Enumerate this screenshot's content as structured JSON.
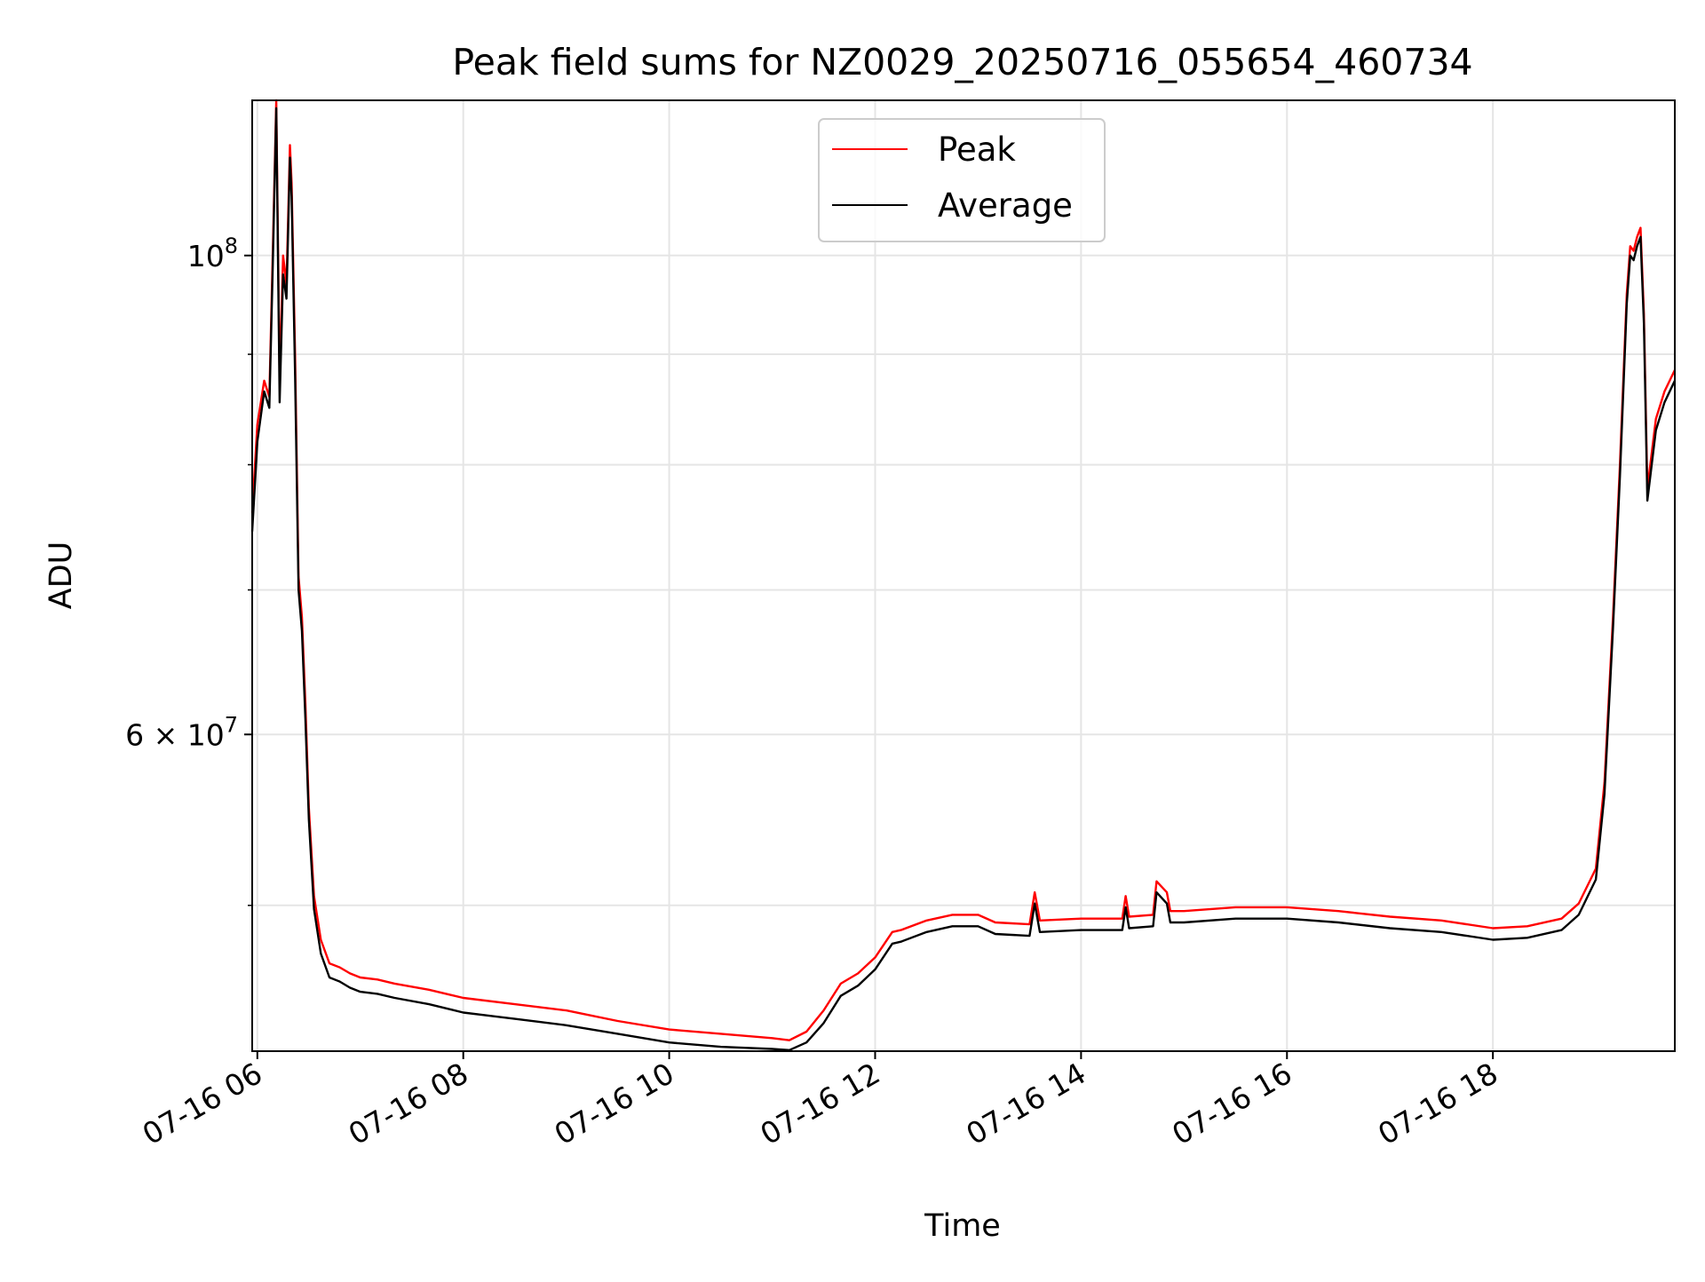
{
  "chart_data": {
    "type": "line",
    "title": "Peak field sums for NZ0029_20250716_055654_460734",
    "xlabel": "Time",
    "ylabel": "ADU",
    "y_scale": "log",
    "ylim": [
      42800000,
      118000000
    ],
    "xlim": [
      "2025-07-16 05:57",
      "2025-07-16 19:46"
    ],
    "grid": true,
    "legend": {
      "position": "upper center",
      "entries": [
        "Peak",
        "Average"
      ]
    },
    "x_ticks": [
      {
        "value": "2025-07-16 06:00",
        "label": "07-16 06"
      },
      {
        "value": "2025-07-16 08:00",
        "label": "07-16 08"
      },
      {
        "value": "2025-07-16 10:00",
        "label": "07-16 10"
      },
      {
        "value": "2025-07-16 12:00",
        "label": "07-16 12"
      },
      {
        "value": "2025-07-16 14:00",
        "label": "07-16 14"
      },
      {
        "value": "2025-07-16 16:00",
        "label": "07-16 16"
      },
      {
        "value": "2025-07-16 18:00",
        "label": "07-16 18"
      }
    ],
    "y_ticks": [
      {
        "value": 100000000,
        "label_base": "10",
        "label_exp": "8"
      },
      {
        "value": 60000000,
        "label_base": "6 × 10",
        "label_exp": "7"
      }
    ],
    "y_minor_ticks": [
      50000000,
      70000000,
      80000000,
      90000000
    ],
    "series": [
      {
        "name": "Peak",
        "color": "#ff0000",
        "x": [
          "2025-07-16 05:57",
          "2025-07-16 06:00",
          "2025-07-16 06:04",
          "2025-07-16 06:07",
          "2025-07-16 06:09",
          "2025-07-16 06:11",
          "2025-07-16 06:13",
          "2025-07-16 06:15",
          "2025-07-16 06:17",
          "2025-07-16 06:19",
          "2025-07-16 06:20",
          "2025-07-16 06:22",
          "2025-07-16 06:24",
          "2025-07-16 06:26",
          "2025-07-16 06:28",
          "2025-07-16 06:30",
          "2025-07-16 06:33",
          "2025-07-16 06:37",
          "2025-07-16 06:42",
          "2025-07-16 06:48",
          "2025-07-16 06:54",
          "2025-07-16 07:00",
          "2025-07-16 07:10",
          "2025-07-16 07:20",
          "2025-07-16 07:40",
          "2025-07-16 08:00",
          "2025-07-16 08:30",
          "2025-07-16 09:00",
          "2025-07-16 09:30",
          "2025-07-16 10:00",
          "2025-07-16 10:30",
          "2025-07-16 11:00",
          "2025-07-16 11:10",
          "2025-07-16 11:20",
          "2025-07-16 11:30",
          "2025-07-16 11:40",
          "2025-07-16 11:50",
          "2025-07-16 12:00",
          "2025-07-16 12:10",
          "2025-07-16 12:15",
          "2025-07-16 12:30",
          "2025-07-16 12:45",
          "2025-07-16 13:00",
          "2025-07-16 13:10",
          "2025-07-16 13:30",
          "2025-07-16 13:33",
          "2025-07-16 13:36",
          "2025-07-16 14:00",
          "2025-07-16 14:24",
          "2025-07-16 14:26",
          "2025-07-16 14:28",
          "2025-07-16 14:42",
          "2025-07-16 14:44",
          "2025-07-16 14:50",
          "2025-07-16 14:52",
          "2025-07-16 15:00",
          "2025-07-16 15:30",
          "2025-07-16 16:00",
          "2025-07-16 16:30",
          "2025-07-16 17:00",
          "2025-07-16 17:30",
          "2025-07-16 18:00",
          "2025-07-16 18:20",
          "2025-07-16 18:40",
          "2025-07-16 18:50",
          "2025-07-16 19:00",
          "2025-07-16 19:05",
          "2025-07-16 19:10",
          "2025-07-16 19:14",
          "2025-07-16 19:18",
          "2025-07-16 19:20",
          "2025-07-16 19:22",
          "2025-07-16 19:24",
          "2025-07-16 19:26",
          "2025-07-16 19:28",
          "2025-07-16 19:30",
          "2025-07-16 19:35",
          "2025-07-16 19:40",
          "2025-07-16 19:46"
        ],
        "y": [
          76000000,
          83500000,
          87500000,
          86000000,
          100500000,
          118000000,
          87500000,
          100000000,
          97000000,
          112500000,
          108000000,
          90000000,
          71000000,
          68000000,
          62000000,
          55500000,
          50500000,
          48200000,
          47000000,
          46800000,
          46500000,
          46300000,
          46200000,
          46000000,
          45700000,
          45300000,
          45000000,
          44700000,
          44200000,
          43800000,
          43600000,
          43400000,
          43300000,
          43700000,
          44700000,
          46000000,
          46500000,
          47300000,
          48600000,
          48700000,
          49200000,
          49500000,
          49500000,
          49100000,
          49000000,
          50700000,
          49200000,
          49300000,
          49300000,
          50500000,
          49400000,
          49500000,
          51300000,
          50700000,
          49700000,
          49700000,
          49900000,
          49900000,
          49700000,
          49400000,
          49200000,
          48800000,
          48900000,
          49300000,
          50100000,
          52000000,
          57000000,
          68000000,
          80000000,
          96000000,
          101000000,
          100500000,
          102000000,
          103000000,
          94000000,
          78000000,
          84000000,
          86500000,
          88500000
        ]
      },
      {
        "name": "Average",
        "color": "#000000",
        "x": [
          "2025-07-16 05:57",
          "2025-07-16 06:00",
          "2025-07-16 06:04",
          "2025-07-16 06:07",
          "2025-07-16 06:09",
          "2025-07-16 06:11",
          "2025-07-16 06:13",
          "2025-07-16 06:15",
          "2025-07-16 06:17",
          "2025-07-16 06:19",
          "2025-07-16 06:20",
          "2025-07-16 06:22",
          "2025-07-16 06:24",
          "2025-07-16 06:26",
          "2025-07-16 06:28",
          "2025-07-16 06:30",
          "2025-07-16 06:33",
          "2025-07-16 06:37",
          "2025-07-16 06:42",
          "2025-07-16 06:48",
          "2025-07-16 06:54",
          "2025-07-16 07:00",
          "2025-07-16 07:10",
          "2025-07-16 07:20",
          "2025-07-16 07:40",
          "2025-07-16 08:00",
          "2025-07-16 08:30",
          "2025-07-16 09:00",
          "2025-07-16 09:30",
          "2025-07-16 10:00",
          "2025-07-16 10:30",
          "2025-07-16 11:00",
          "2025-07-16 11:10",
          "2025-07-16 11:20",
          "2025-07-16 11:30",
          "2025-07-16 11:40",
          "2025-07-16 11:50",
          "2025-07-16 12:00",
          "2025-07-16 12:10",
          "2025-07-16 12:15",
          "2025-07-16 12:30",
          "2025-07-16 12:45",
          "2025-07-16 13:00",
          "2025-07-16 13:10",
          "2025-07-16 13:30",
          "2025-07-16 13:33",
          "2025-07-16 13:36",
          "2025-07-16 14:00",
          "2025-07-16 14:24",
          "2025-07-16 14:26",
          "2025-07-16 14:28",
          "2025-07-16 14:42",
          "2025-07-16 14:44",
          "2025-07-16 14:50",
          "2025-07-16 14:52",
          "2025-07-16 15:00",
          "2025-07-16 15:30",
          "2025-07-16 16:00",
          "2025-07-16 16:30",
          "2025-07-16 17:00",
          "2025-07-16 17:30",
          "2025-07-16 18:00",
          "2025-07-16 18:20",
          "2025-07-16 18:40",
          "2025-07-16 18:50",
          "2025-07-16 19:00",
          "2025-07-16 19:05",
          "2025-07-16 19:10",
          "2025-07-16 19:14",
          "2025-07-16 19:18",
          "2025-07-16 19:20",
          "2025-07-16 19:22",
          "2025-07-16 19:24",
          "2025-07-16 19:26",
          "2025-07-16 19:28",
          "2025-07-16 19:30",
          "2025-07-16 19:35",
          "2025-07-16 19:40",
          "2025-07-16 19:46"
        ],
        "y": [
          74500000,
          82000000,
          86500000,
          85000000,
          99000000,
          117000000,
          85500000,
          98000000,
          95500000,
          111000000,
          106500000,
          88000000,
          70000000,
          67000000,
          61000000,
          54800000,
          49800000,
          47500000,
          46300000,
          46100000,
          45800000,
          45600000,
          45500000,
          45300000,
          45000000,
          44600000,
          44300000,
          44000000,
          43600000,
          43200000,
          43000000,
          42900000,
          42850000,
          43200000,
          44100000,
          45400000,
          45900000,
          46700000,
          48000000,
          48100000,
          48600000,
          48900000,
          48900000,
          48500000,
          48400000,
          50100000,
          48600000,
          48700000,
          48700000,
          49900000,
          48800000,
          48900000,
          50700000,
          50100000,
          49100000,
          49100000,
          49300000,
          49300000,
          49100000,
          48800000,
          48600000,
          48200000,
          48300000,
          48700000,
          49500000,
          51400000,
          56300000,
          67200000,
          79000000,
          95000000,
          100000000,
          99500000,
          101000000,
          102000000,
          93000000,
          77000000,
          83000000,
          85500000,
          87500000
        ]
      }
    ]
  }
}
